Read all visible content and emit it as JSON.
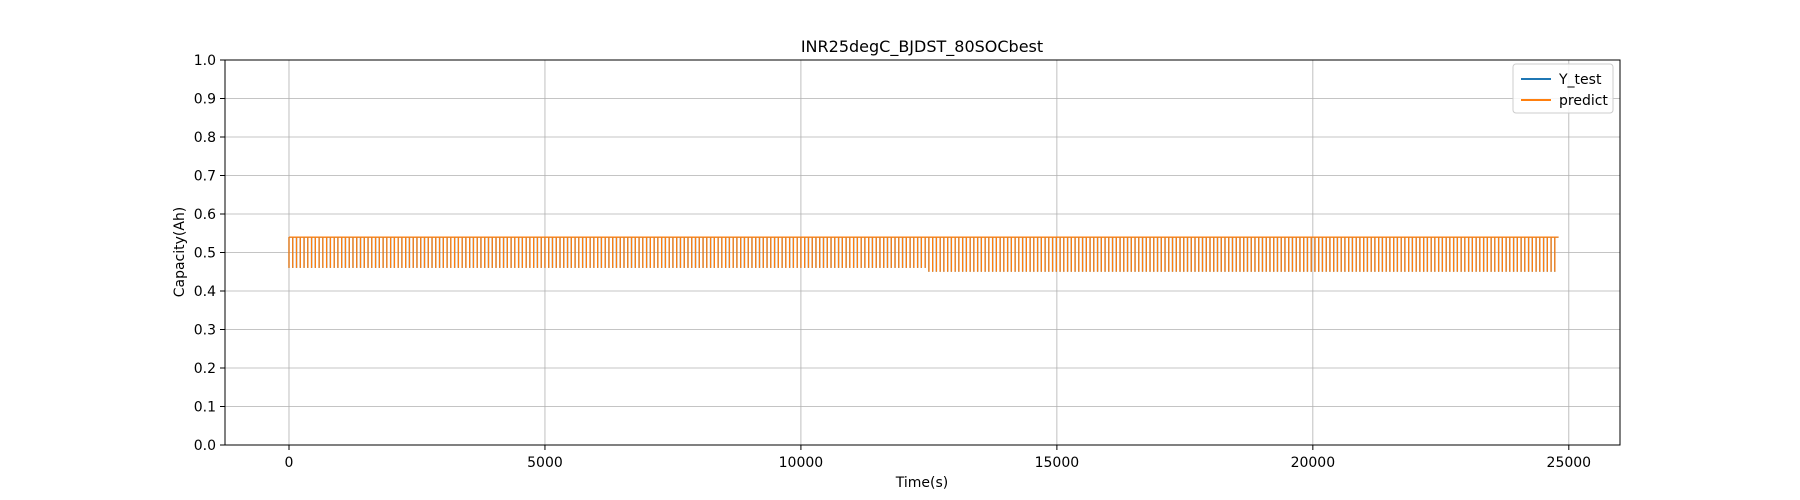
{
  "chart_data": {
    "type": "line",
    "title": "INR25degC_BJDST_80SOCbest",
    "xlabel": "Time(s)",
    "ylabel": "Capacity(Ah)",
    "xlim": [
      -1250,
      26000
    ],
    "ylim": [
      0.0,
      1.0
    ],
    "xticks": [
      0,
      5000,
      10000,
      15000,
      20000,
      25000
    ],
    "yticks": [
      0.0,
      0.1,
      0.2,
      0.3,
      0.4,
      0.5,
      0.6,
      0.7,
      0.8,
      0.9,
      1.0
    ],
    "xtick_labels": [
      "0",
      "5000",
      "10000",
      "15000",
      "20000",
      "25000"
    ],
    "ytick_labels": [
      "0.0",
      "0.1",
      "0.2",
      "0.3",
      "0.4",
      "0.5",
      "0.6",
      "0.7",
      "0.8",
      "0.9",
      "1.0"
    ],
    "grid": true,
    "legend_position": "top-right",
    "series": [
      {
        "name": "Y_test",
        "color": "#1f77b4",
        "x_range": [
          0,
          24800
        ],
        "segments": [
          {
            "x_start": 0,
            "x_end": 12500,
            "high": 0.54,
            "low": 0.46,
            "cycles": 170
          },
          {
            "x_start": 12500,
            "x_end": 24800,
            "high": 0.54,
            "low": 0.45,
            "cycles": 168
          }
        ]
      },
      {
        "name": "predict",
        "color": "#ff7f0e",
        "x_range": [
          0,
          24800
        ],
        "segments": [
          {
            "x_start": 0,
            "x_end": 12500,
            "high": 0.54,
            "low": 0.46,
            "cycles": 170
          },
          {
            "x_start": 12500,
            "x_end": 24800,
            "high": 0.54,
            "low": 0.45,
            "cycles": 168
          }
        ]
      }
    ]
  }
}
